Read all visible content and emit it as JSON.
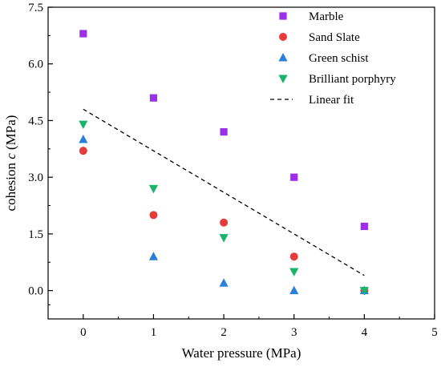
{
  "chart_data": {
    "type": "scatter",
    "title": "",
    "xlabel": "Water pressure (MPa)",
    "ylabel_prefix": "cohesion ",
    "ylabel_var": "c",
    "ylabel_suffix": " (MPa)",
    "xlim": [
      -0.5,
      5
    ],
    "ylim": [
      -0.75,
      7.5
    ],
    "x_ticks": [
      0,
      1,
      2,
      3,
      4,
      5
    ],
    "x_tick_labels": [
      "0",
      "1",
      "2",
      "3",
      "4",
      "5"
    ],
    "y_ticks": [
      0,
      1.5,
      3,
      4.5,
      6,
      7.5
    ],
    "y_tick_labels": [
      "0.0",
      "1.5",
      "3.0",
      "4.5",
      "6.0",
      "7.5"
    ],
    "grid": false,
    "legend_position": "top-right",
    "series": [
      {
        "name": "Marble",
        "marker": "square",
        "color": "#9b30e8",
        "x": [
          0,
          1,
          2,
          3,
          4
        ],
        "y": [
          6.8,
          5.1,
          4.2,
          3.0,
          1.7
        ]
      },
      {
        "name": "Sand Slate",
        "marker": "circle",
        "color": "#e63b3b",
        "x": [
          0,
          1,
          2,
          3,
          4
        ],
        "y": [
          3.7,
          2.0,
          1.8,
          0.9,
          0.0
        ]
      },
      {
        "name": "Green schist",
        "marker": "triangle-up",
        "color": "#2a7fd8",
        "x": [
          0,
          1,
          2,
          3,
          4
        ],
        "y": [
          4.0,
          0.9,
          0.2,
          0.0,
          0.0
        ]
      },
      {
        "name": "Brilliant porphyry",
        "marker": "triangle-down",
        "color": "#19b36b",
        "x": [
          0,
          1,
          2,
          3,
          4
        ],
        "y": [
          4.4,
          2.7,
          1.4,
          0.5,
          0.0
        ]
      }
    ],
    "fit": {
      "name": "Linear fit",
      "style": "dashed",
      "color": "#000000",
      "x": [
        0,
        4
      ],
      "y": [
        4.8,
        0.4
      ]
    }
  }
}
